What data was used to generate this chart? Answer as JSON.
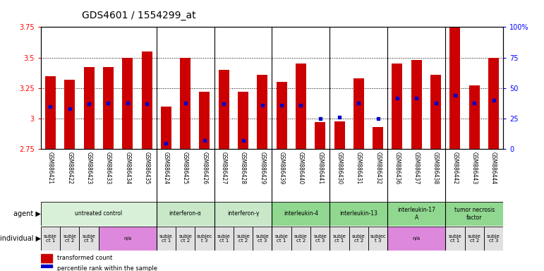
{
  "title": "GDS4601 / 1554299_at",
  "samples": [
    "GSM886421",
    "GSM886422",
    "GSM886423",
    "GSM886433",
    "GSM886434",
    "GSM886435",
    "GSM886424",
    "GSM886425",
    "GSM886426",
    "GSM886427",
    "GSM886428",
    "GSM886429",
    "GSM886439",
    "GSM886440",
    "GSM886441",
    "GSM886430",
    "GSM886431",
    "GSM886432",
    "GSM886436",
    "GSM886437",
    "GSM886438",
    "GSM886442",
    "GSM886443",
    "GSM886444"
  ],
  "red_values": [
    3.35,
    3.32,
    3.42,
    3.42,
    3.5,
    3.55,
    3.1,
    3.5,
    3.22,
    3.4,
    3.22,
    3.36,
    3.3,
    3.45,
    2.97,
    2.98,
    3.33,
    2.93,
    3.45,
    3.48,
    3.36,
    3.75,
    3.27,
    3.5
  ],
  "blue_values": [
    35,
    33,
    37,
    38,
    38,
    37,
    5,
    38,
    7,
    37,
    7,
    36,
    36,
    36,
    25,
    26,
    38,
    25,
    42,
    42,
    38,
    44,
    38,
    40
  ],
  "ylim_left": [
    2.75,
    3.75
  ],
  "ylim_right": [
    0,
    100
  ],
  "yticks_left": [
    2.75,
    3.0,
    3.25,
    3.5,
    3.75
  ],
  "ytick_labels_left": [
    "2.75",
    "3",
    "3.25",
    "3.5",
    "3.75"
  ],
  "yticks_right": [
    0,
    25,
    50,
    75,
    100
  ],
  "ytick_labels_right": [
    "0",
    "25",
    "50",
    "75",
    "100%"
  ],
  "bar_color": "#cc0000",
  "marker_color": "#0000cc",
  "bar_bottom": 2.75,
  "grid_yticks": [
    3.0,
    3.25,
    3.5
  ],
  "group_separators": [
    6,
    9,
    12,
    15,
    18,
    21
  ],
  "agents": [
    {
      "label": "untreated control",
      "start": 0,
      "end": 6,
      "color": "#d8f0d8"
    },
    {
      "label": "interferon-α",
      "start": 6,
      "end": 9,
      "color": "#c8e8c8"
    },
    {
      "label": "interferon-γ",
      "start": 9,
      "end": 12,
      "color": "#c8e8c8"
    },
    {
      "label": "interleukin-4",
      "start": 12,
      "end": 15,
      "color": "#90d890"
    },
    {
      "label": "interleukin-13",
      "start": 15,
      "end": 18,
      "color": "#90d890"
    },
    {
      "label": "interleukin-17\nA",
      "start": 18,
      "end": 21,
      "color": "#90d890"
    },
    {
      "label": "tumor necrosis\nfactor",
      "start": 21,
      "end": 24,
      "color": "#90d890"
    }
  ],
  "individuals": [
    {
      "label": "subje\nct 1",
      "start": 0,
      "end": 1,
      "color": "#e0e0e0"
    },
    {
      "label": "subje\nct 2",
      "start": 1,
      "end": 2,
      "color": "#e0e0e0"
    },
    {
      "label": "subje\nct 3",
      "start": 2,
      "end": 3,
      "color": "#e0e0e0"
    },
    {
      "label": "n/a",
      "start": 3,
      "end": 6,
      "color": "#dd88dd"
    },
    {
      "label": "subje\nct 1",
      "start": 6,
      "end": 7,
      "color": "#e0e0e0"
    },
    {
      "label": "subje\nct 2",
      "start": 7,
      "end": 8,
      "color": "#e0e0e0"
    },
    {
      "label": "subjec\nt 3",
      "start": 8,
      "end": 9,
      "color": "#e0e0e0"
    },
    {
      "label": "subje\nct 1",
      "start": 9,
      "end": 10,
      "color": "#e0e0e0"
    },
    {
      "label": "subje\nct 2",
      "start": 10,
      "end": 11,
      "color": "#e0e0e0"
    },
    {
      "label": "subje\nct 3",
      "start": 11,
      "end": 12,
      "color": "#e0e0e0"
    },
    {
      "label": "subje\nct 1",
      "start": 12,
      "end": 13,
      "color": "#e0e0e0"
    },
    {
      "label": "subje\nct 2",
      "start": 13,
      "end": 14,
      "color": "#e0e0e0"
    },
    {
      "label": "subje\nct 3",
      "start": 14,
      "end": 15,
      "color": "#e0e0e0"
    },
    {
      "label": "subje\nct 1",
      "start": 15,
      "end": 16,
      "color": "#e0e0e0"
    },
    {
      "label": "subje\nct 2",
      "start": 16,
      "end": 17,
      "color": "#e0e0e0"
    },
    {
      "label": "subjec\nt 3",
      "start": 17,
      "end": 18,
      "color": "#e0e0e0"
    },
    {
      "label": "n/a",
      "start": 18,
      "end": 21,
      "color": "#dd88dd"
    },
    {
      "label": "subje\nct 1",
      "start": 21,
      "end": 22,
      "color": "#e0e0e0"
    },
    {
      "label": "subje\nct 2",
      "start": 22,
      "end": 23,
      "color": "#e0e0e0"
    },
    {
      "label": "subje\nct 3",
      "start": 23,
      "end": 24,
      "color": "#e0e0e0"
    }
  ],
  "legend_items": [
    {
      "label": "transformed count",
      "color": "#cc0000"
    },
    {
      "label": "percentile rank within the sample",
      "color": "#0000cc"
    }
  ],
  "agent_label": "agent",
  "individual_label": "individual",
  "bg_color": "#ffffff",
  "title_fontsize": 10,
  "tick_fontsize": 7,
  "label_fontsize": 7,
  "annot_fontsize": 5.5,
  "sample_fontsize": 5.5
}
